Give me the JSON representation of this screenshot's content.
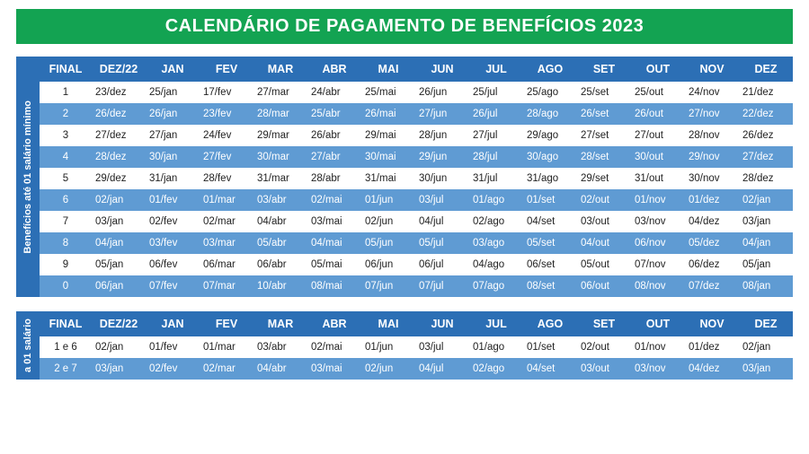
{
  "title": "CALENDÁRIO DE PAGAMENTO DE BENEFÍCIOS 2023",
  "title_fontsize": 20,
  "colors": {
    "banner_bg": "#13a352",
    "header_bg": "#2c6fb5",
    "sidebar_bg": "#2c6fb5",
    "row_odd_bg": "#ffffff",
    "row_even_bg": "#5f9bd3",
    "text_light": "#ffffff",
    "text_dark": "#222222"
  },
  "columns": [
    "FINAL",
    "DEZ/22",
    "JAN",
    "FEV",
    "MAR",
    "ABR",
    "MAI",
    "JUN",
    "JUL",
    "AGO",
    "SET",
    "OUT",
    "NOV",
    "DEZ"
  ],
  "table1": {
    "sidebar_label": "Benefícios até 01 salário mínimo",
    "rows": [
      {
        "final": "1",
        "cells": [
          "23/dez",
          "25/jan",
          "17/fev",
          "27/mar",
          "24/abr",
          "25/mai",
          "26/jun",
          "25/jul",
          "25/ago",
          "25/set",
          "25/out",
          "24/nov",
          "21/dez"
        ]
      },
      {
        "final": "2",
        "cells": [
          "26/dez",
          "26/jan",
          "23/fev",
          "28/mar",
          "25/abr",
          "26/mai",
          "27/jun",
          "26/jul",
          "28/ago",
          "26/set",
          "26/out",
          "27/nov",
          "22/dez"
        ]
      },
      {
        "final": "3",
        "cells": [
          "27/dez",
          "27/jan",
          "24/fev",
          "29/mar",
          "26/abr",
          "29/mai",
          "28/jun",
          "27/jul",
          "29/ago",
          "27/set",
          "27/out",
          "28/nov",
          "26/dez"
        ]
      },
      {
        "final": "4",
        "cells": [
          "28/dez",
          "30/jan",
          "27/fev",
          "30/mar",
          "27/abr",
          "30/mai",
          "29/jun",
          "28/jul",
          "30/ago",
          "28/set",
          "30/out",
          "29/nov",
          "27/dez"
        ]
      },
      {
        "final": "5",
        "cells": [
          "29/dez",
          "31/jan",
          "28/fev",
          "31/mar",
          "28/abr",
          "31/mai",
          "30/jun",
          "31/jul",
          "31/ago",
          "29/set",
          "31/out",
          "30/nov",
          "28/dez"
        ]
      },
      {
        "final": "6",
        "cells": [
          "02/jan",
          "01/fev",
          "01/mar",
          "03/abr",
          "02/mai",
          "01/jun",
          "03/jul",
          "01/ago",
          "01/set",
          "02/out",
          "01/nov",
          "01/dez",
          "02/jan"
        ]
      },
      {
        "final": "7",
        "cells": [
          "03/jan",
          "02/fev",
          "02/mar",
          "04/abr",
          "03/mai",
          "02/jun",
          "04/jul",
          "02/ago",
          "04/set",
          "03/out",
          "03/nov",
          "04/dez",
          "03/jan"
        ]
      },
      {
        "final": "8",
        "cells": [
          "04/jan",
          "03/fev",
          "03/mar",
          "05/abr",
          "04/mai",
          "05/jun",
          "05/jul",
          "03/ago",
          "05/set",
          "04/out",
          "06/nov",
          "05/dez",
          "04/jan"
        ]
      },
      {
        "final": "9",
        "cells": [
          "05/jan",
          "06/fev",
          "06/mar",
          "06/abr",
          "05/mai",
          "06/jun",
          "06/jul",
          "04/ago",
          "06/set",
          "05/out",
          "07/nov",
          "06/dez",
          "05/jan"
        ]
      },
      {
        "final": "0",
        "cells": [
          "06/jan",
          "07/fev",
          "07/mar",
          "10/abr",
          "08/mai",
          "07/jun",
          "07/jul",
          "07/ago",
          "08/set",
          "06/out",
          "08/nov",
          "07/dez",
          "08/jan"
        ]
      }
    ]
  },
  "table2": {
    "sidebar_label": "a 01 salário",
    "rows": [
      {
        "final": "1 e 6",
        "cells": [
          "02/jan",
          "01/fev",
          "01/mar",
          "03/abr",
          "02/mai",
          "01/jun",
          "03/jul",
          "01/ago",
          "01/set",
          "02/out",
          "01/nov",
          "01/dez",
          "02/jan"
        ]
      },
      {
        "final": "2 e 7",
        "cells": [
          "03/jan",
          "02/fev",
          "02/mar",
          "04/abr",
          "03/mai",
          "02/jun",
          "04/jul",
          "02/ago",
          "04/set",
          "03/out",
          "03/nov",
          "04/dez",
          "03/jan"
        ]
      }
    ]
  }
}
